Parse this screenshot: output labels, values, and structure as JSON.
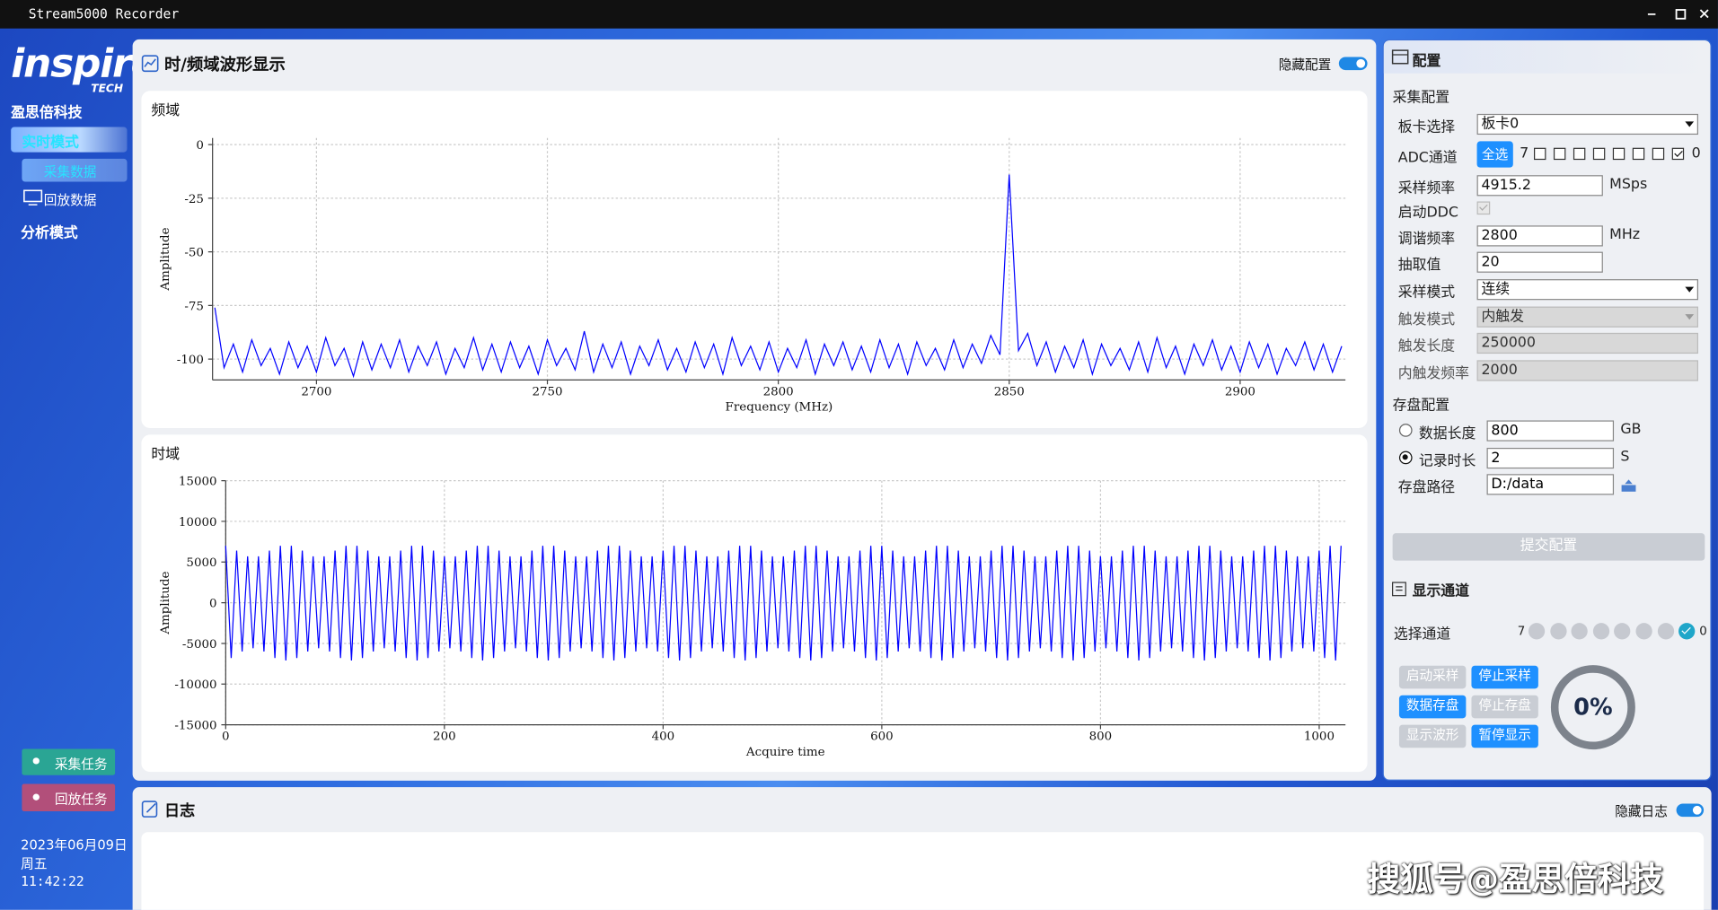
{
  "window": {
    "title": "Stream5000 Recorder"
  },
  "sidebar": {
    "brand": "inspire",
    "brand_sub": "TECH",
    "company": "盈思倍科技",
    "nav": [
      "实时模式",
      "采集数据",
      "回放数据",
      "分析模式"
    ],
    "tasks": [
      "采集任务",
      "回放任务"
    ],
    "date": "2023年06月09日",
    "weekday": "周五",
    "time": "11:42:22"
  },
  "main": {
    "title": "时/频域波形显示",
    "toggle_label": "隐藏配置"
  },
  "chart_data": [
    {
      "type": "line",
      "title": "频域",
      "x_label": "Frequency (MHz)",
      "y_label": "Amplitude",
      "color": "#0000ff",
      "grid": true,
      "xlim": [
        2677.5,
        2922.8
      ],
      "ylim": [
        -109.7,
        3.1
      ],
      "xticks": [
        2700,
        2750,
        2800,
        2850,
        2900
      ],
      "yticks": [
        0,
        -25,
        -50,
        -75,
        -100
      ],
      "x": [
        2678,
        2680,
        2682,
        2684,
        2686,
        2688,
        2690,
        2692,
        2694,
        2696,
        2698,
        2700,
        2702,
        2704,
        2706,
        2708,
        2710,
        2712,
        2714,
        2716,
        2718,
        2720,
        2722,
        2724,
        2726,
        2728,
        2730,
        2732,
        2734,
        2736,
        2738,
        2740,
        2742,
        2744,
        2746,
        2748,
        2750,
        2752,
        2754,
        2756,
        2758,
        2760,
        2762,
        2764,
        2766,
        2768,
        2770,
        2772,
        2774,
        2776,
        2778,
        2780,
        2782,
        2784,
        2786,
        2788,
        2790,
        2792,
        2794,
        2796,
        2798,
        2800,
        2802,
        2804,
        2806,
        2808,
        2810,
        2812,
        2814,
        2816,
        2818,
        2820,
        2822,
        2824,
        2826,
        2828,
        2830,
        2832,
        2834,
        2836,
        2838,
        2840,
        2842,
        2844,
        2846,
        2848,
        2850,
        2852,
        2854,
        2856,
        2858,
        2860,
        2862,
        2864,
        2866,
        2868,
        2870,
        2872,
        2874,
        2876,
        2878,
        2880,
        2882,
        2884,
        2886,
        2888,
        2890,
        2892,
        2894,
        2896,
        2898,
        2900,
        2902,
        2904,
        2906,
        2908,
        2910,
        2912,
        2914,
        2916,
        2918,
        2920,
        2922
      ],
      "values": [
        -76,
        -104,
        -93,
        -106,
        -91,
        -103,
        -95,
        -107,
        -92,
        -104,
        -94,
        -106,
        -90,
        -103,
        -95,
        -108,
        -92,
        -105,
        -93,
        -104,
        -91,
        -106,
        -94,
        -103,
        -92,
        -107,
        -95,
        -104,
        -90,
        -105,
        -93,
        -106,
        -92,
        -104,
        -94,
        -107,
        -91,
        -103,
        -95,
        -105,
        -87,
        -106,
        -93,
        -104,
        -92,
        -107,
        -94,
        -103,
        -91,
        -105,
        -95,
        -106,
        -92,
        -104,
        -93,
        -107,
        -90,
        -103,
        -94,
        -105,
        -92,
        -106,
        -95,
        -104,
        -91,
        -107,
        -93,
        -103,
        -92,
        -105,
        -94,
        -106,
        -91,
        -104,
        -93,
        -107,
        -92,
        -103,
        -95,
        -105,
        -91,
        -104,
        -93,
        -102,
        -89,
        -98,
        -14,
        -96,
        -88,
        -103,
        -92,
        -106,
        -94,
        -104,
        -91,
        -107,
        -93,
        -103,
        -95,
        -105,
        -92,
        -106,
        -90,
        -104,
        -94,
        -107,
        -93,
        -103,
        -91,
        -105,
        -94,
        -106,
        -92,
        -104,
        -93,
        -107,
        -95,
        -103,
        -92,
        -105,
        -93,
        -106,
        -94
      ]
    },
    {
      "type": "line",
      "title": "时域",
      "x_label": "Acquire time",
      "y_label": "Amplitude",
      "color": "#0000ff",
      "grid": true,
      "xlim": [
        0,
        1024
      ],
      "ylim": [
        -15000,
        15000
      ],
      "xticks": [
        0,
        200,
        400,
        600,
        800,
        1000
      ],
      "yticks": [
        15000,
        10000,
        5000,
        0,
        -5000,
        -10000,
        -15000
      ],
      "x": [
        0,
        5,
        10,
        15,
        20,
        25,
        30,
        35,
        40,
        45,
        50,
        55,
        60,
        65,
        70,
        75,
        80,
        85,
        90,
        95,
        100,
        105,
        110,
        115,
        120,
        125,
        130,
        135,
        140,
        145,
        150,
        155,
        160,
        165,
        170,
        175,
        180,
        185,
        190,
        195,
        200,
        205,
        210,
        215,
        220,
        225,
        230,
        235,
        240,
        245,
        250,
        255,
        260,
        265,
        270,
        275,
        280,
        285,
        290,
        295,
        300,
        305,
        310,
        315,
        320,
        325,
        330,
        335,
        340,
        345,
        350,
        355,
        360,
        365,
        370,
        375,
        380,
        385,
        390,
        395,
        400,
        405,
        410,
        415,
        420,
        425,
        430,
        435,
        440,
        445,
        450,
        455,
        460,
        465,
        470,
        475,
        480,
        485,
        490,
        495,
        500,
        505,
        510,
        515,
        520,
        525,
        530,
        535,
        540,
        545,
        550,
        555,
        560,
        565,
        570,
        575,
        580,
        585,
        590,
        595,
        600,
        605,
        610,
        615,
        620,
        625,
        630,
        635,
        640,
        645,
        650,
        655,
        660,
        665,
        670,
        675,
        680,
        685,
        690,
        695,
        700,
        705,
        710,
        715,
        720,
        725,
        730,
        735,
        740,
        745,
        750,
        755,
        760,
        765,
        770,
        775,
        780,
        785,
        790,
        795,
        800,
        805,
        810,
        815,
        820,
        825,
        830,
        835,
        840,
        845,
        850,
        855,
        860,
        865,
        870,
        875,
        880,
        885,
        890,
        895,
        900,
        905,
        910,
        915,
        920,
        925,
        930,
        935,
        940,
        945,
        950,
        955,
        960,
        965,
        970,
        975,
        980,
        985,
        990,
        995,
        1000,
        1005,
        1010,
        1015,
        1020
      ],
      "values": [
        7000,
        -6800,
        6400,
        -6000,
        5700,
        -5600,
        5700,
        -6000,
        6400,
        -6800,
        7000,
        -7100,
        7000,
        -6800,
        6400,
        -6000,
        5700,
        -5600,
        5700,
        -6000,
        6400,
        -6800,
        7000,
        -7100,
        7000,
        -6800,
        6400,
        -6000,
        5700,
        -5600,
        5700,
        -6000,
        6400,
        -6800,
        7000,
        -7100,
        7000,
        -6800,
        6400,
        -6000,
        5700,
        -5600,
        5700,
        -6000,
        6400,
        -6800,
        7000,
        -7100,
        7000,
        -6800,
        6400,
        -6000,
        5700,
        -5600,
        5700,
        -6000,
        6400,
        -6800,
        7000,
        -7100,
        7000,
        -6800,
        6400,
        -6000,
        5700,
        -5600,
        5700,
        -6000,
        6400,
        -6800,
        7000,
        -7100,
        7000,
        -6800,
        6400,
        -6000,
        5700,
        -5600,
        5700,
        -6000,
        6400,
        -6800,
        7000,
        -7100,
        7000,
        -6800,
        6400,
        -6000,
        5700,
        -5600,
        5700,
        -6000,
        6400,
        -6800,
        7000,
        -7100,
        7000,
        -6800,
        6400,
        -6000,
        5700,
        -5600,
        5700,
        -6000,
        6400,
        -6800,
        7000,
        -7100,
        7000,
        -6800,
        6400,
        -6000,
        5700,
        -5600,
        5700,
        -6000,
        6400,
        -6800,
        7000,
        -7100,
        7000,
        -6800,
        6400,
        -6000,
        5700,
        -5600,
        5700,
        -6000,
        6400,
        -6800,
        7000,
        -7100,
        7000,
        -6800,
        6400,
        -6000,
        5700,
        -5600,
        5700,
        -6000,
        6400,
        -6800,
        7000,
        -7100,
        7000,
        -6800,
        6400,
        -6000,
        5700,
        -5600,
        5700,
        -6000,
        6400,
        -6800,
        7000,
        -7100,
        7000,
        -6800,
        6400,
        -6000,
        5700,
        -5600,
        5700,
        -6000,
        6400,
        -6800,
        7000,
        -7100,
        7000,
        -6800,
        6400,
        -6000,
        5700,
        -5600,
        5700,
        -6000,
        6400,
        -6800,
        7000,
        -7100,
        7000,
        -6800,
        6400,
        -6000,
        5700,
        -5600,
        5700,
        -6000,
        6400,
        -6800,
        7000,
        -7100,
        7000,
        -6800,
        6400,
        -6000,
        5700,
        -5600,
        5700,
        -6000,
        6400,
        -6800,
        7000,
        -7100,
        7000
      ]
    }
  ],
  "config": {
    "title": "配置",
    "acq_title": "采集配置",
    "board": {
      "label": "板卡选择",
      "value": "板卡0"
    },
    "adc": {
      "label": "ADC通道",
      "select_all": "全选",
      "high": "7",
      "low": "0",
      "checked": [
        false,
        false,
        false,
        false,
        false,
        false,
        false,
        true
      ]
    },
    "rate": {
      "label": "采样频率",
      "value": "4915.2",
      "unit": "MSps"
    },
    "ddc": {
      "label": "启动DDC",
      "checked": true
    },
    "tune": {
      "label": "调谐频率",
      "value": "2800",
      "unit": "MHz"
    },
    "decim": {
      "label": "抽取值",
      "value": "20"
    },
    "mode": {
      "label": "采样模式",
      "value": "连续"
    },
    "trig_mode": {
      "label": "触发模式",
      "value": "内触发"
    },
    "trig_len": {
      "label": "触发长度",
      "value": "250000"
    },
    "trig_freq": {
      "label": "内触发频率",
      "value": "2000"
    },
    "store_title": "存盘配置",
    "data_len": {
      "label": "数据长度",
      "value": "800",
      "unit": "GB",
      "selected": false
    },
    "rec_time": {
      "label": "记录时长",
      "value": "2",
      "unit": "S",
      "selected": true
    },
    "path": {
      "label": "存盘路径",
      "value": "D:/data"
    },
    "submit": "提交配置"
  },
  "display": {
    "title": "显示通道",
    "select_label": "选择通道",
    "high": "7",
    "low": "0",
    "checked": [
      false,
      false,
      false,
      false,
      false,
      false,
      false,
      true
    ],
    "buttons": [
      {
        "label": "启动采样",
        "enabled": false
      },
      {
        "label": "停止采样",
        "enabled": true
      },
      {
        "label": "数据存盘",
        "enabled": true
      },
      {
        "label": "停止存盘",
        "enabled": false
      },
      {
        "label": "显示波形",
        "enabled": false
      },
      {
        "label": "暂停显示",
        "enabled": true
      }
    ],
    "progress": {
      "value": 0,
      "label": "0%"
    }
  },
  "log": {
    "title": "日志",
    "toggle_label": "隐藏日志"
  },
  "watermark": "搜狐号@盈思倍科技"
}
